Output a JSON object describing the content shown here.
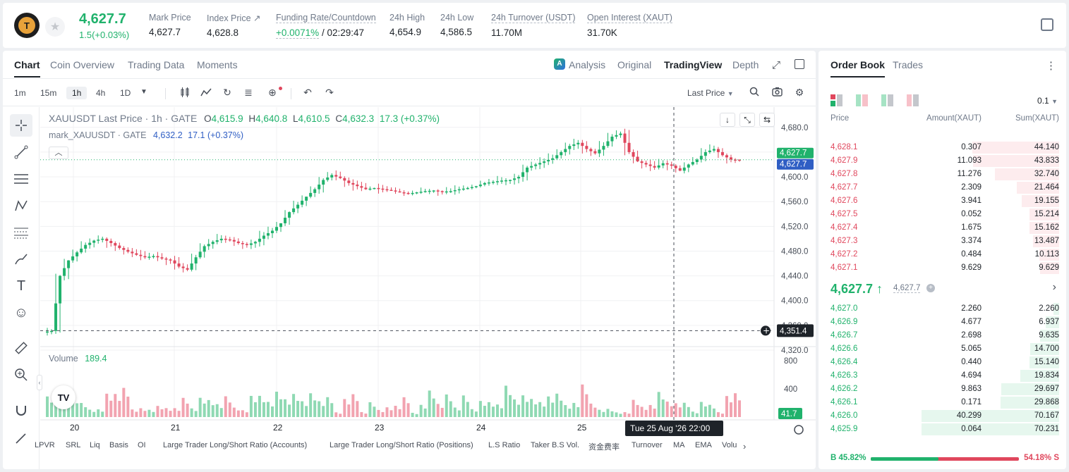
{
  "header": {
    "symbol_logo": "T",
    "price": "4,627.7",
    "change": "1.5(+0.03%)",
    "stats": [
      {
        "label": "Mark Price",
        "value": "4,627.7"
      },
      {
        "label": "Index Price ↗",
        "value": "4,628.8"
      },
      {
        "label": "Funding Rate/Countdown",
        "value_a": "+0.0071%",
        "value_b": "/ 02:29:47"
      },
      {
        "label": "24h High",
        "value": "4,654.9"
      },
      {
        "label": "24h Low",
        "value": "4,586.5"
      },
      {
        "label": "24h Turnover (USDT)",
        "value": "11.70M"
      },
      {
        "label": "Open Interest (XAUT)",
        "value": "31.70K"
      }
    ]
  },
  "chart_tabs": [
    "Chart",
    "Coin Overview",
    "Trading Data",
    "Moments"
  ],
  "view_tabs": [
    "Analysis",
    "Original",
    "TradingView",
    "Depth"
  ],
  "intervals": [
    "1m",
    "15m",
    "1h",
    "4h",
    "1D"
  ],
  "price_type": "Last Price",
  "legend": {
    "title": "XAUUSDT Last Price · 1h · GATE",
    "o_label": "O",
    "o": "4,615.9",
    "h_label": "H",
    "h": "4,640.8",
    "l_label": "L",
    "l": "4,610.5",
    "c_label": "C",
    "c": "4,632.3",
    "chg": "17.3 (+0.37%)",
    "mark_label": "mark_XAUUSDT · GATE",
    "mark_val": "4,632.2",
    "mark_chg": "17.1 (+0.37%)"
  },
  "volume_legend": {
    "label": "Volume",
    "value": "189.4"
  },
  "price_axis": [
    "4,680.0",
    "4,640.0",
    "4,600.0",
    "4,560.0",
    "4,520.0",
    "4,480.0",
    "4,440.0",
    "4,400.0",
    "4,360.0",
    "4,320.0"
  ],
  "volume_axis": [
    "800",
    "400"
  ],
  "last_label": "4,627.7",
  "mark_label": "4,627.7",
  "cross_label": "4,351.4",
  "vol_label": "41.7",
  "time_axis": [
    "20",
    "21",
    "22",
    "23",
    "24",
    "25"
  ],
  "crosshair_time": "Tue 25 Aug '26   22:00",
  "bottom_items": [
    "LPVR",
    "SRL",
    "Liq",
    "Basis",
    "OI",
    "Large Trader Long/Short Ratio (Accounts)",
    "Large Trader Long/Short Ratio (Positions)",
    "L.S Ratio",
    "Taker B.S Vol.",
    "资金费率",
    "Turnover",
    "MA",
    "EMA",
    "Volu"
  ],
  "chart_data": {
    "type": "candlestick",
    "xlabel": "",
    "ylabel": "",
    "ylim": [
      4320,
      4690
    ],
    "close_series": [
      4351,
      4440,
      4465,
      4478,
      4490,
      4497,
      4500,
      4493,
      4485,
      4479,
      4474,
      4470,
      4472,
      4468,
      4465,
      4455,
      4450,
      4470,
      4488,
      4495,
      4500,
      4498,
      4493,
      4490,
      4495,
      4505,
      4513,
      4525,
      4543,
      4555,
      4568,
      4580,
      4595,
      4603,
      4598,
      4590,
      4585,
      4580,
      4582,
      4580,
      4578,
      4575,
      4573,
      4575,
      4577,
      4578,
      4576,
      4577,
      4580,
      4582,
      4585,
      4590,
      4592,
      4594,
      4595,
      4600,
      4615,
      4620,
      4625,
      4630,
      4640,
      4650,
      4655,
      4645,
      4638,
      4650,
      4665,
      4670,
      4640,
      4625,
      4620,
      4615,
      4622,
      4618,
      4610,
      4620,
      4628,
      4640,
      4645,
      4635,
      4628,
      4627.7
    ]
  },
  "orderbook": {
    "tabs": [
      "Order Book",
      "Trades"
    ],
    "precision": "0.1",
    "headers": [
      "Price",
      "Amount(XAUT)",
      "Sum(XAUT)"
    ],
    "asks": [
      {
        "p": "4,628.1",
        "a": "0.307",
        "s": "44.140"
      },
      {
        "p": "4,627.9",
        "a": "11.093",
        "s": "43.833"
      },
      {
        "p": "4,627.8",
        "a": "11.276",
        "s": "32.740"
      },
      {
        "p": "4,627.7",
        "a": "2.309",
        "s": "21.464"
      },
      {
        "p": "4,627.6",
        "a": "3.941",
        "s": "19.155"
      },
      {
        "p": "4,627.5",
        "a": "0.052",
        "s": "15.214"
      },
      {
        "p": "4,627.4",
        "a": "1.675",
        "s": "15.162"
      },
      {
        "p": "4,627.3",
        "a": "3.374",
        "s": "13.487"
      },
      {
        "p": "4,627.2",
        "a": "0.484",
        "s": "10.113"
      },
      {
        "p": "4,627.1",
        "a": "9.629",
        "s": "9.629"
      }
    ],
    "mid_price": "4,627.7 ↑",
    "mid_mark": "4,627.7",
    "bids": [
      {
        "p": "4,627.0",
        "a": "2.260",
        "s": "2.260"
      },
      {
        "p": "4,626.9",
        "a": "4.677",
        "s": "6.937"
      },
      {
        "p": "4,626.7",
        "a": "2.698",
        "s": "9.635"
      },
      {
        "p": "4,626.6",
        "a": "5.065",
        "s": "14.700"
      },
      {
        "p": "4,626.4",
        "a": "0.440",
        "s": "15.140"
      },
      {
        "p": "4,626.3",
        "a": "4.694",
        "s": "19.834"
      },
      {
        "p": "4,626.2",
        "a": "9.863",
        "s": "29.697"
      },
      {
        "p": "4,626.1",
        "a": "0.171",
        "s": "29.868"
      },
      {
        "p": "4,626.0",
        "a": "40.299",
        "s": "70.167"
      },
      {
        "p": "4,625.9",
        "a": "0.064",
        "s": "70.231"
      }
    ],
    "buy_ratio": "B 45.82%",
    "sell_ratio": "54.18% S",
    "buy_fraction": 0.4582
  },
  "colors": {
    "up": "#20b26c",
    "down": "#e0475d",
    "mark": "#2f5ec4"
  }
}
